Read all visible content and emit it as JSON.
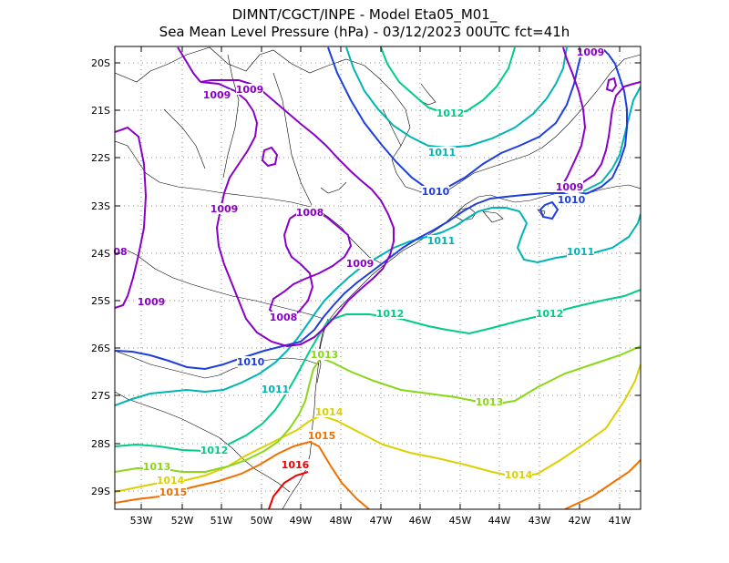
{
  "title": {
    "line1": "DIMNT/CGCT/INPE -  Model Eta05_M01_",
    "line2": "Sea Mean Level Pressure (hPa) - 03/12/2023 00UTC fct=41h"
  },
  "axes": {
    "lon_labels": [
      "53W",
      "52W",
      "51W",
      "50W",
      "49W",
      "48W",
      "47W",
      "46W",
      "45W",
      "44W",
      "43W",
      "42W",
      "41W"
    ],
    "lat_labels": [
      "20S",
      "21S",
      "22S",
      "23S",
      "24S",
      "25S",
      "26S",
      "27S",
      "28S",
      "29S"
    ]
  },
  "colors": {
    "c1008": "#8a00c8",
    "c1009": "#8a00c8",
    "c1010": "#1e3ee0",
    "c1011": "#00b4b4",
    "c1012": "#00cc88",
    "c1013": "#88d818",
    "c1014": "#dcd000",
    "c1015": "#f07000",
    "c1016": "#f00000",
    "coast": "#000000",
    "grid": "#808080"
  },
  "contour_labels": [
    {
      "text": "1009",
      "color": "#8a00c8"
    },
    {
      "text": "1009",
      "color": "#8a00c8"
    },
    {
      "text": "1009",
      "color": "#8a00c8"
    },
    {
      "text": "1009",
      "color": "#8a00c8"
    },
    {
      "text": "1009",
      "color": "#8a00c8"
    },
    {
      "text": "1009",
      "color": "#8a00c8"
    },
    {
      "text": "1009",
      "color": "#8a00c8"
    },
    {
      "text": "1008",
      "color": "#8a00c8"
    },
    {
      "text": "1008",
      "color": "#8a00c8"
    },
    {
      "text": "08",
      "color": "#8a00c8"
    },
    {
      "text": "1010",
      "color": "#1e3ee0"
    },
    {
      "text": "1010",
      "color": "#1e3ee0"
    },
    {
      "text": "1010",
      "color": "#1e3ee0"
    },
    {
      "text": "1011",
      "color": "#00b4b4"
    },
    {
      "text": "1011",
      "color": "#00b4b4"
    },
    {
      "text": "1011",
      "color": "#00b4b4"
    },
    {
      "text": "1011",
      "color": "#00b4b4"
    },
    {
      "text": "1012",
      "color": "#00cc88"
    },
    {
      "text": "1012",
      "color": "#00cc88"
    },
    {
      "text": "1012",
      "color": "#00cc88"
    },
    {
      "text": "1012",
      "color": "#00cc88"
    },
    {
      "text": "1013",
      "color": "#88d818"
    },
    {
      "text": "1013",
      "color": "#88d818"
    },
    {
      "text": "1013",
      "color": "#88d818"
    },
    {
      "text": "1014",
      "color": "#dcd000"
    },
    {
      "text": "1014",
      "color": "#dcd000"
    },
    {
      "text": "1014",
      "color": "#dcd000"
    },
    {
      "text": "1015",
      "color": "#f07000"
    },
    {
      "text": "1015",
      "color": "#f07000"
    },
    {
      "text": "1016",
      "color": "#f00000"
    }
  ]
}
